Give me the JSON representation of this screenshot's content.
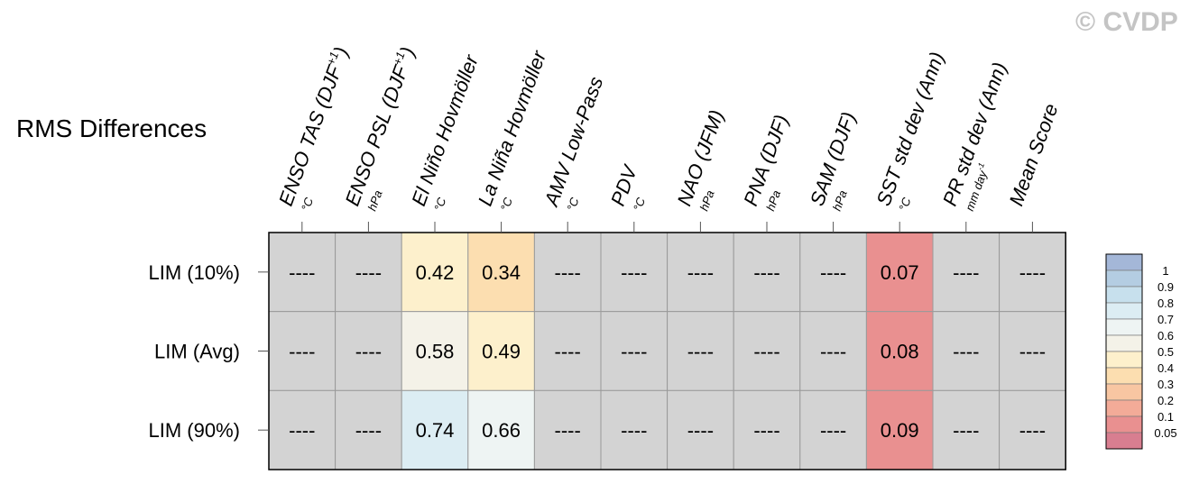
{
  "watermark": "© CVDP",
  "chart_data": {
    "type": "heatmap",
    "title": "RMS Differences",
    "columns": [
      {
        "label": "ENSO TAS (DJF",
        "sup": "+1",
        "close": ")",
        "unit": "°C"
      },
      {
        "label": "ENSO PSL (DJF",
        "sup": "+1",
        "close": ")",
        "unit": "hPa"
      },
      {
        "label": "El Niño Hovmöller",
        "sup": "",
        "close": "",
        "unit": "°C"
      },
      {
        "label": "La Niña Hovmöller",
        "sup": "",
        "close": "",
        "unit": "°C"
      },
      {
        "label": "AMV Low-Pass",
        "sup": "",
        "close": "",
        "unit": "°C"
      },
      {
        "label": "PDV",
        "sup": "",
        "close": "",
        "unit": "°C"
      },
      {
        "label": "NAO (JFM)",
        "sup": "",
        "close": "",
        "unit": "hPa"
      },
      {
        "label": "PNA (DJF)",
        "sup": "",
        "close": "",
        "unit": "hPa"
      },
      {
        "label": "SAM (DJF)",
        "sup": "",
        "close": "",
        "unit": "hPa"
      },
      {
        "label": "SST std dev (Ann)",
        "sup": "",
        "close": "",
        "unit": "°C"
      },
      {
        "label": "PR std dev (Ann)",
        "sup": "",
        "close": "",
        "unit": "mm day",
        "unit_sup": "-1"
      },
      {
        "label": "Mean Score",
        "sup": "",
        "close": "",
        "unit": ""
      }
    ],
    "rows": [
      "LIM (10%)",
      "LIM (Avg)",
      "LIM (90%)"
    ],
    "values": [
      [
        null,
        null,
        0.42,
        0.34,
        null,
        null,
        null,
        null,
        null,
        0.07,
        null,
        null
      ],
      [
        null,
        null,
        0.58,
        0.49,
        null,
        null,
        null,
        null,
        null,
        0.08,
        null,
        null
      ],
      [
        null,
        null,
        0.74,
        0.66,
        null,
        null,
        null,
        null,
        null,
        0.09,
        null,
        null
      ]
    ],
    "missing_label": "----",
    "missing_color": "#d3d3d3",
    "colorbar": {
      "labels": [
        "1",
        "0.9",
        "0.8",
        "0.7",
        "0.6",
        "0.5",
        "0.4",
        "0.3",
        "0.2",
        "0.1",
        "0.05"
      ],
      "colors": [
        "#a4b7d8",
        "#b4cde2",
        "#c7e0ed",
        "#dcedf3",
        "#eef4f3",
        "#f4f2e8",
        "#fdf0cc",
        "#fcdeb0",
        "#f8c6a2",
        "#f3ab98",
        "#e99090",
        "#d87e90"
      ]
    }
  }
}
